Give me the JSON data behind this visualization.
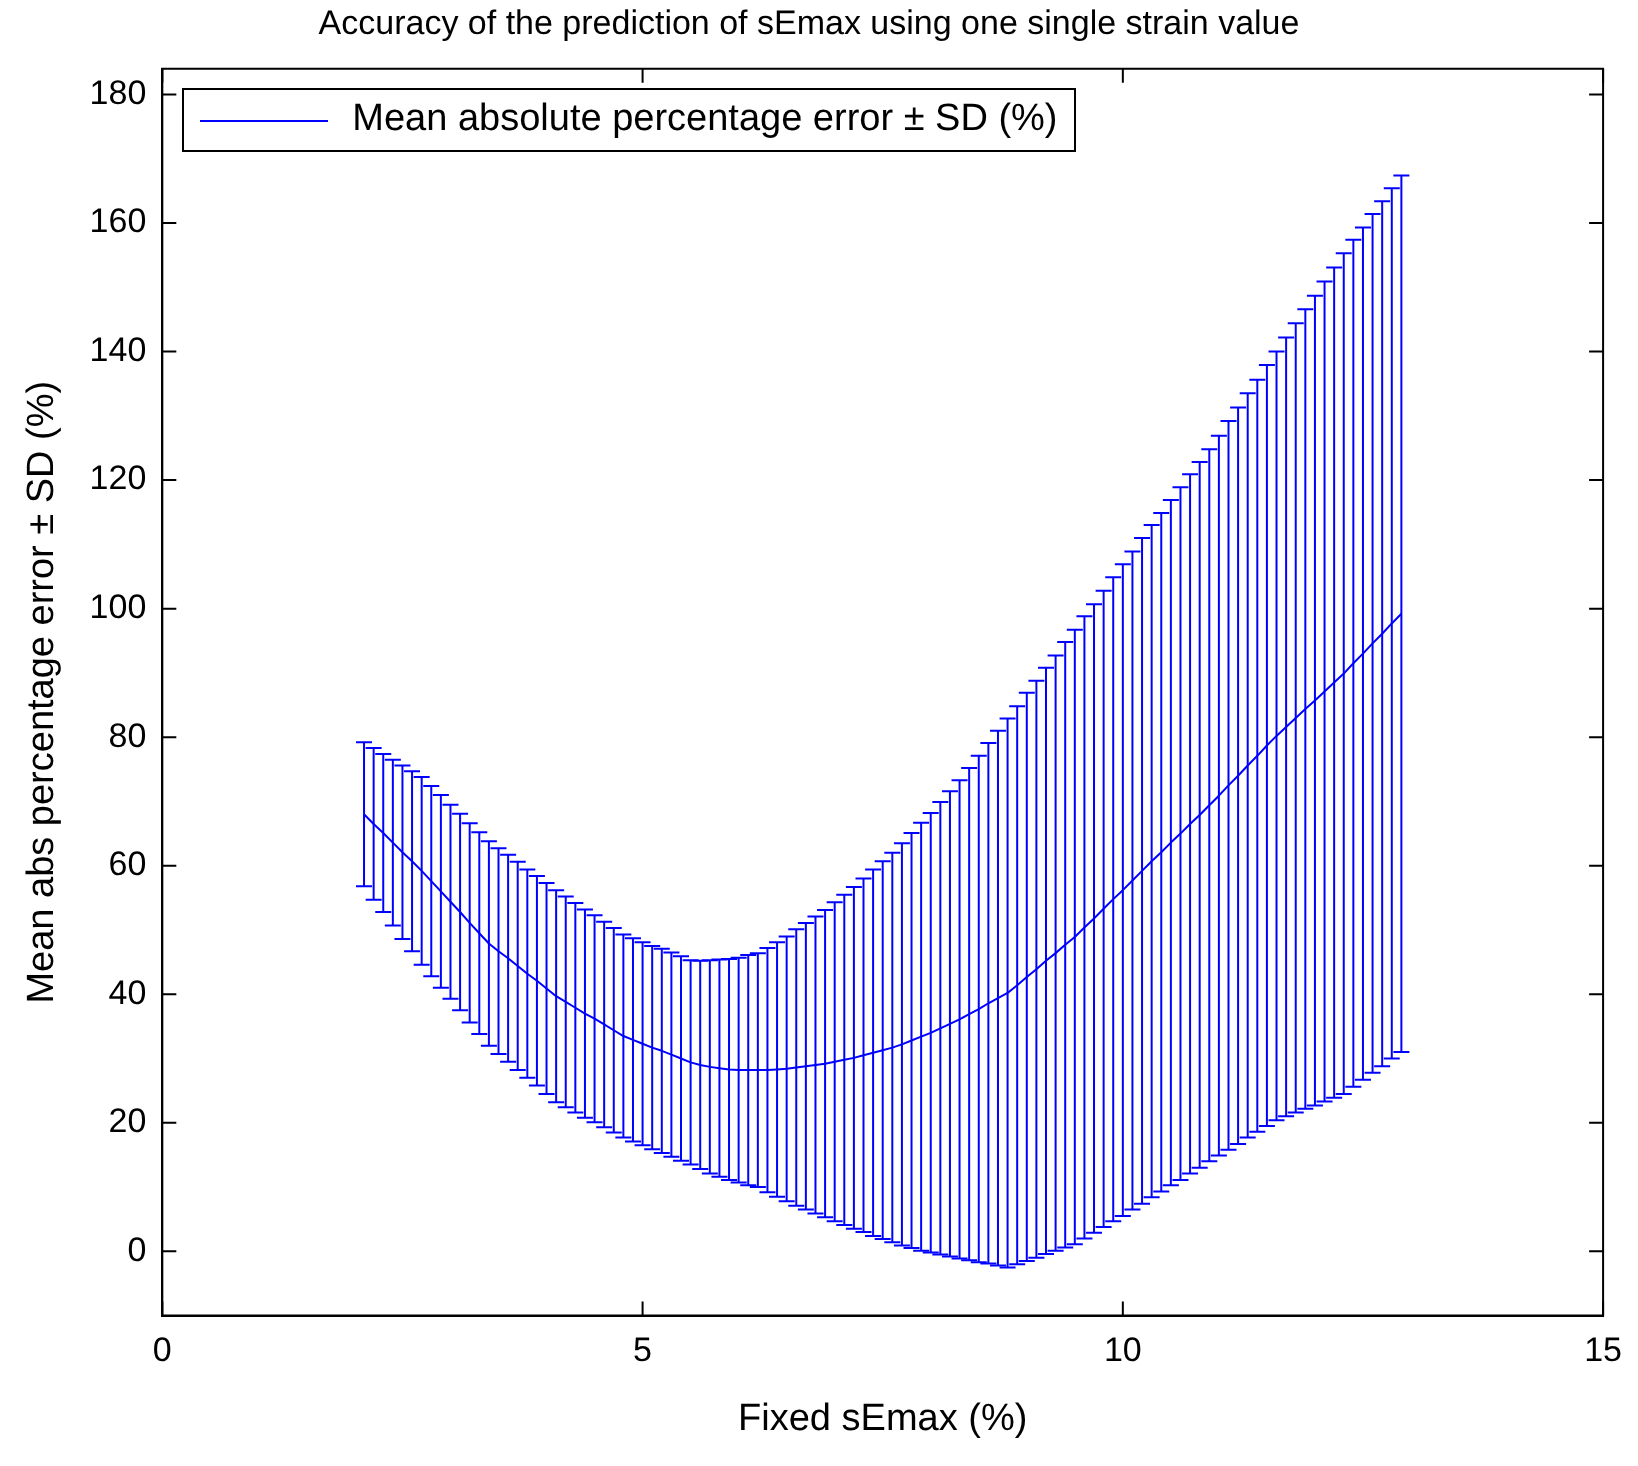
{
  "chart_data": {
    "type": "line",
    "title": "Accuracy of the prediction of sEmax using one single strain value",
    "xlabel": "Fixed sEmax (%)",
    "ylabel": "Mean abs percentage error ± SD (%)",
    "x": [
      2.1,
      2.2,
      2.3,
      2.4,
      2.5,
      2.6,
      2.7,
      2.8,
      2.9,
      3.0,
      3.1,
      3.2,
      3.3,
      3.4,
      3.5,
      3.6,
      3.7,
      3.8,
      3.9,
      4.0,
      4.1,
      4.2,
      4.3,
      4.4,
      4.5,
      4.6,
      4.7,
      4.8,
      4.9,
      5.0,
      5.1,
      5.2,
      5.3,
      5.4,
      5.5,
      5.6,
      5.7,
      5.8,
      5.9,
      6.0,
      6.1,
      6.2,
      6.3,
      6.4,
      6.5,
      6.6,
      6.7,
      6.8,
      6.9,
      7.0,
      7.1,
      7.2,
      7.3,
      7.4,
      7.5,
      7.6,
      7.7,
      7.8,
      7.9,
      8.0,
      8.1,
      8.2,
      8.3,
      8.4,
      8.5,
      8.6,
      8.7,
      8.8,
      8.9,
      9.0,
      9.1,
      9.2,
      9.3,
      9.4,
      9.5,
      9.6,
      9.7,
      9.8,
      9.9,
      10.0,
      10.1,
      10.2,
      10.3,
      10.4,
      10.5,
      10.6,
      10.7,
      10.8,
      10.9,
      11.0,
      11.1,
      11.2,
      11.3,
      11.4,
      11.5,
      11.6,
      11.7,
      11.8,
      11.9,
      12.0,
      12.1,
      12.2,
      12.3,
      12.4,
      12.5,
      12.6,
      12.7,
      12.8,
      12.9
    ],
    "series": [
      {
        "name": "Mean absolute percentage error ± SD (%)",
        "color": "#0000ff",
        "values": [
          68.0,
          66.5,
          65.1,
          63.6,
          62.1,
          60.7,
          59.2,
          57.6,
          56.0,
          54.4,
          52.8,
          51.1,
          49.5,
          47.9,
          46.7,
          45.6,
          44.4,
          43.2,
          42.1,
          40.9,
          39.7,
          38.8,
          37.9,
          37.0,
          36.2,
          35.3,
          34.4,
          33.5,
          32.9,
          32.3,
          31.7,
          31.2,
          30.6,
          30.0,
          29.4,
          29.0,
          28.7,
          28.5,
          28.3,
          28.2,
          28.2,
          28.2,
          28.2,
          28.3,
          28.4,
          28.6,
          28.8,
          29.0,
          29.2,
          29.5,
          29.8,
          30.1,
          30.5,
          30.9,
          31.3,
          31.7,
          32.2,
          32.8,
          33.4,
          34.0,
          34.7,
          35.4,
          36.1,
          36.9,
          37.7,
          38.6,
          39.4,
          40.2,
          41.4,
          42.7,
          43.9,
          45.2,
          46.4,
          47.7,
          48.9,
          50.4,
          51.8,
          53.3,
          54.8,
          56.2,
          57.7,
          59.2,
          60.7,
          62.1,
          63.6,
          65.0,
          66.5,
          67.9,
          69.4,
          70.9,
          72.5,
          74.0,
          75.6,
          77.1,
          78.7,
          80.2,
          81.6,
          83.0,
          84.4,
          85.7,
          87.1,
          88.5,
          89.9,
          91.5,
          93.0,
          94.6,
          96.1,
          97.7,
          99.2
        ],
        "errors": [
          11.2,
          11.8,
          12.3,
          12.9,
          13.5,
          14.0,
          14.6,
          14.8,
          15.0,
          15.1,
          15.3,
          15.5,
          15.7,
          15.9,
          16.0,
          16.1,
          16.2,
          16.2,
          16.3,
          16.4,
          16.5,
          16.4,
          16.3,
          16.2,
          16.1,
          16.0,
          15.9,
          15.8,
          15.8,
          15.8,
          15.8,
          15.9,
          15.9,
          15.9,
          15.9,
          16.2,
          16.6,
          16.9,
          17.2,
          17.5,
          17.9,
          18.2,
          19.0,
          19.8,
          20.6,
          21.5,
          22.3,
          23.1,
          23.9,
          24.8,
          25.7,
          26.6,
          27.5,
          28.5,
          29.4,
          30.3,
          31.3,
          32.3,
          33.3,
          34.2,
          35.2,
          36.2,
          37.2,
          38.3,
          39.4,
          40.5,
          41.6,
          42.7,
          43.4,
          44.2,
          44.9,
          45.6,
          46.3,
          47.1,
          47.8,
          48.4,
          48.9,
          49.5,
          50.1,
          50.7,
          51.2,
          51.8,
          52.3,
          52.8,
          53.3,
          53.9,
          54.4,
          54.9,
          55.4,
          56.0,
          56.7,
          57.3,
          57.9,
          58.5,
          59.2,
          59.8,
          60.6,
          61.4,
          62.2,
          63.0,
          63.8,
          64.6,
          65.4,
          65.9,
          66.3,
          66.8,
          67.3,
          67.7,
          68.2
        ]
      }
    ],
    "xlim": [
      0,
      15
    ],
    "xticks": [
      0,
      5,
      10,
      15
    ],
    "ylim": [
      -10,
      184
    ],
    "yticks": [
      0,
      20,
      40,
      60,
      80,
      100,
      120,
      140,
      160,
      180
    ],
    "grid": false,
    "legend": "top left",
    "marker": "none",
    "line_style": "solid"
  }
}
